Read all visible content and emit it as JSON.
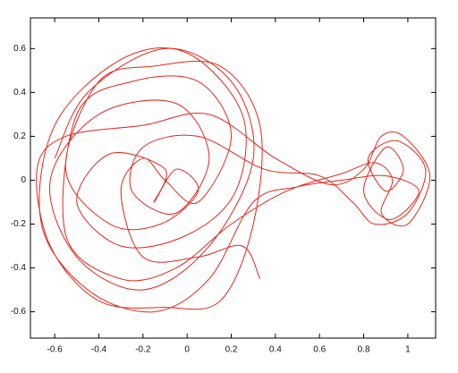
{
  "chart_data": {
    "type": "line",
    "x": [
      -0.6,
      -0.45,
      -0.1,
      0.2,
      0.3,
      0.1,
      -0.2,
      -0.5,
      -0.62,
      -0.4,
      -0.05,
      0.1,
      -0.05,
      -0.25,
      -0.2,
      0.05,
      0.35,
      0.6,
      0.75,
      0.85,
      1.0,
      1.08,
      0.95,
      0.82,
      0.9,
      0.98,
      0.9,
      0.8,
      0.92,
      1.05,
      0.9,
      0.7,
      0.5,
      0.3,
      0.1,
      -0.15,
      -0.45,
      -0.66,
      -0.6,
      -0.3,
      0.0,
      0.25,
      0.22,
      0.0,
      -0.3,
      -0.5,
      -0.35,
      -0.1,
      -0.15,
      -0.05,
      0.05,
      -0.12,
      -0.35,
      -0.55,
      -0.4,
      -0.15,
      0.15,
      0.33,
      0.3,
      0.15,
      -0.1,
      -0.4,
      -0.62,
      -0.68,
      -0.55,
      -0.2,
      0.1,
      0.4,
      0.65,
      0.8,
      0.88,
      0.98,
      1.1,
      1.0,
      0.88,
      0.93,
      0.85,
      0.7,
      0.45,
      0.2,
      -0.05,
      -0.3,
      -0.55,
      -0.5,
      -0.25,
      0.05,
      0.2,
      0.05,
      -0.1,
      -0.2,
      -0.3,
      -0.2,
      0.05,
      0.25,
      0.33
    ],
    "series": [
      {
        "color": "#e3261c",
        "values": [
          0.1,
          0.4,
          0.6,
          0.45,
          0.1,
          -0.3,
          -0.5,
          -0.35,
          0.0,
          0.3,
          0.35,
          0.1,
          -0.15,
          -0.05,
          0.15,
          0.2,
          0.05,
          0.02,
          -0.1,
          -0.2,
          -0.15,
          0.05,
          0.18,
          0.1,
          -0.05,
          0.05,
          0.15,
          -0.05,
          -0.18,
          -0.05,
          0.02,
          0.0,
          -0.03,
          -0.1,
          -0.45,
          -0.6,
          -0.5,
          -0.2,
          0.25,
          0.55,
          0.58,
          0.3,
          -0.05,
          -0.25,
          -0.3,
          -0.1,
          0.12,
          0.05,
          -0.1,
          0.05,
          -0.05,
          -0.2,
          -0.2,
          0.05,
          0.45,
          0.52,
          0.52,
          0.25,
          -0.2,
          -0.55,
          -0.58,
          -0.55,
          -0.3,
          0.05,
          0.2,
          0.25,
          0.3,
          0.1,
          -0.02,
          0.05,
          0.2,
          0.2,
          0.02,
          -0.2,
          -0.15,
          0.0,
          0.08,
          0.03,
          -0.05,
          -0.2,
          -0.4,
          -0.45,
          -0.25,
          0.3,
          0.45,
          0.45,
          0.2,
          -0.1,
          0.0,
          0.1,
          -0.05,
          -0.35,
          -0.35,
          -0.3,
          -0.45
        ]
      }
    ],
    "xlim": [
      -0.71,
      1.126
    ],
    "ylim": [
      -0.72,
      0.74
    ],
    "xticks": [
      -0.6,
      -0.4,
      -0.2,
      0,
      0.2,
      0.4,
      0.6,
      0.8,
      1
    ],
    "yticks": [
      -0.6,
      -0.4,
      -0.2,
      0,
      0.2,
      0.4,
      0.6
    ]
  }
}
